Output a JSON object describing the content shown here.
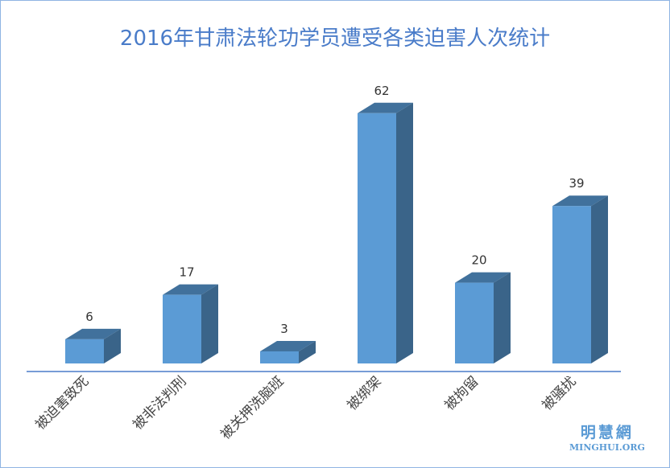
{
  "chart_data": {
    "type": "bar",
    "title": "2016年甘肃法轮功学员遭受各类迫害人次统计",
    "categories": [
      "被迫害致死",
      "被非法判刑",
      "被关押洗脑班",
      "被绑架",
      "被拘留",
      "被骚扰"
    ],
    "values": [
      6,
      17,
      3,
      62,
      20,
      39
    ],
    "style": "3d-column",
    "grid": false,
    "colors": {
      "front": "#5b9bd5",
      "top": "#41719c",
      "side": "#3a6489",
      "axis": "#4a7cc9",
      "title": "#4a7cc9"
    }
  },
  "watermark": {
    "cn": "明慧網",
    "en": "MINGHUI.ORG"
  }
}
